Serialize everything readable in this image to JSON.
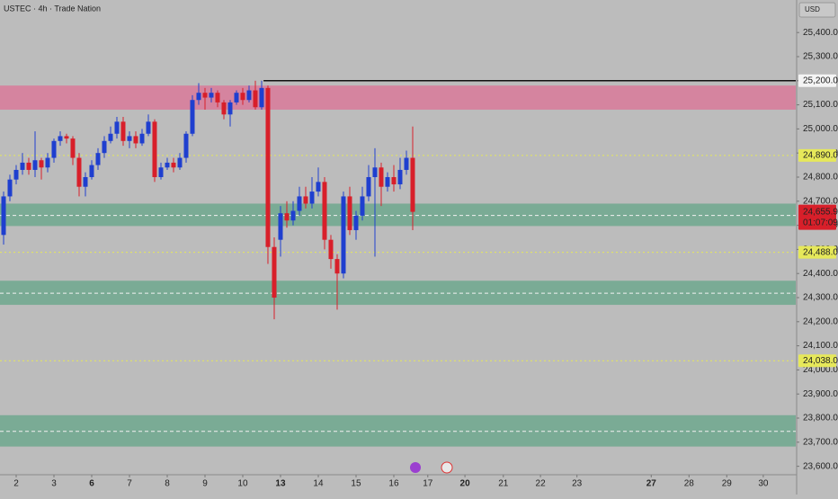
{
  "chart_data": {
    "type": "candlestick",
    "title": "USTEC · 4h · Trade Nation",
    "currency": "USD",
    "up_color": "#1f3fcf",
    "down_color": "#d81f2a",
    "open": [
      24560,
      24720,
      24790,
      24830,
      24860,
      24830,
      24870,
      24840,
      24880,
      24950,
      24970,
      24960,
      24880,
      24760,
      24800,
      24850,
      24900,
      24950,
      24980,
      25030,
      24950,
      24970,
      24940,
      24980,
      25030,
      24800,
      24840,
      24860,
      24840,
      24880,
      24980,
      25120,
      25150,
      25130,
      25150,
      25110,
      25060,
      25110,
      25150,
      25120,
      25160,
      25090,
      25170,
      24510,
      24540,
      24650,
      24620,
      24660,
      24720,
      24690,
      24740,
      24780,
      24540,
      24460,
      24400,
      24720,
      24580,
      24640,
      24720,
      24800,
      24840,
      24760,
      24800,
      24770,
      24830,
      24880
    ],
    "high": [
      24740,
      24810,
      24850,
      24900,
      24880,
      24990,
      24880,
      24900,
      24960,
      24990,
      24980,
      24970,
      24900,
      24820,
      24870,
      24920,
      24970,
      25010,
      25050,
      25050,
      24990,
      24990,
      25000,
      25060,
      25040,
      24860,
      24880,
      24880,
      24900,
      24990,
      25140,
      25190,
      25170,
      25170,
      25160,
      25120,
      25120,
      25160,
      25170,
      25180,
      25200,
      25200,
      25180,
      24550,
      24680,
      24700,
      24700,
      24760,
      24760,
      24800,
      24840,
      24800,
      24560,
      24480,
      24740,
      24760,
      24660,
      24760,
      24850,
      24920,
      24860,
      24820,
      24850,
      24880,
      24910,
      25010
    ],
    "low": [
      24520,
      24700,
      24770,
      24810,
      24810,
      24800,
      24790,
      24820,
      24860,
      24930,
      24940,
      24850,
      24720,
      24720,
      24790,
      24830,
      24880,
      24940,
      24960,
      24930,
      24920,
      24920,
      24930,
      24970,
      24780,
      24790,
      24830,
      24820,
      24830,
      24860,
      24970,
      25100,
      25080,
      25110,
      25090,
      25040,
      25010,
      25100,
      25100,
      25110,
      25080,
      25080,
      24440,
      24210,
      24470,
      24590,
      24600,
      24640,
      24670,
      24670,
      24720,
      24500,
      24420,
      24250,
      24380,
      24560,
      24540,
      24620,
      24700,
      24470,
      24680,
      24740,
      24740,
      24750,
      24810,
      24580
    ],
    "close": [
      24720,
      24790,
      24830,
      24860,
      24830,
      24870,
      24840,
      24880,
      24950,
      24970,
      24960,
      24880,
      24760,
      24800,
      24850,
      24900,
      24950,
      24980,
      25030,
      24950,
      24970,
      24940,
      24980,
      25030,
      24800,
      24840,
      24860,
      24840,
      24880,
      24980,
      25120,
      25150,
      25130,
      25150,
      25110,
      25060,
      25110,
      25150,
      25120,
      25160,
      25090,
      25170,
      24510,
      24300,
      24650,
      24620,
      24660,
      24720,
      24690,
      24740,
      24780,
      24540,
      24460,
      24400,
      24720,
      24580,
      24640,
      24720,
      24800,
      24840,
      24760,
      24800,
      24770,
      24830,
      24880,
      24655.9
    ],
    "xlim": [
      -0.57,
      125.86
    ],
    "xticks": [
      {
        "value": 2,
        "label": "2"
      },
      {
        "value": 8,
        "label": "3"
      },
      {
        "value": 14,
        "label": "6",
        "bold": true
      },
      {
        "value": 20,
        "label": "7"
      },
      {
        "value": 26,
        "label": "8"
      },
      {
        "value": 32,
        "label": "9"
      },
      {
        "value": 38,
        "label": "10"
      },
      {
        "value": 44,
        "label": "13",
        "bold": true
      },
      {
        "value": 50,
        "label": "14"
      },
      {
        "value": 56,
        "label": "15"
      },
      {
        "value": 62,
        "label": "16"
      },
      {
        "value": 67.4,
        "label": "17"
      },
      {
        "value": 73.3,
        "label": "20",
        "bold": true
      },
      {
        "value": 79.4,
        "label": "21"
      },
      {
        "value": 85.3,
        "label": "22"
      },
      {
        "value": 91.1,
        "label": "23"
      },
      {
        "value": 102.9,
        "label": "27",
        "bold": true
      },
      {
        "value": 108.9,
        "label": "28"
      },
      {
        "value": 114.9,
        "label": "29"
      },
      {
        "value": 120.7,
        "label": "30"
      }
    ],
    "ylim": [
      23565,
      25535
    ],
    "yticks": [
      {
        "value": 25400,
        "label": "25,400.0"
      },
      {
        "value": 25300,
        "label": "25,300.0"
      },
      {
        "value": 25200,
        "label": "25,200.0"
      },
      {
        "value": 25100,
        "label": "25,100.0"
      },
      {
        "value": 25000,
        "label": "25,000.0"
      },
      {
        "value": 24900,
        "label": "24,900.0"
      },
      {
        "value": 24800,
        "label": "24,800.0"
      },
      {
        "value": 24700,
        "label": "24,700.0"
      },
      {
        "value": 24600,
        "label": "24,600.0"
      },
      {
        "value": 24500,
        "label": "24,500.0"
      },
      {
        "value": 24400,
        "label": "24,400.0"
      },
      {
        "value": 24300,
        "label": "24,300.0"
      },
      {
        "value": 24200,
        "label": "24,200.0"
      },
      {
        "value": 24100,
        "label": "24,100.0"
      },
      {
        "value": 24000,
        "label": "24,000.0"
      },
      {
        "value": 23900,
        "label": "23,900.0"
      },
      {
        "value": 23800,
        "label": "23,800.0"
      },
      {
        "value": 23700,
        "label": "23,700.0"
      },
      {
        "value": 23600,
        "label": "23,600.0"
      }
    ],
    "zones": [
      {
        "low": 25080,
        "high": 25180,
        "color": "#d97a9a",
        "mid": null
      },
      {
        "low": 24597,
        "high": 24690,
        "color": "#6fa88e",
        "mid": 24641
      },
      {
        "low": 24270,
        "high": 24370,
        "color": "#6fa88e",
        "mid": 24318
      },
      {
        "low": 23682,
        "high": 23812,
        "color": "#6fa88e",
        "mid": 23745
      }
    ],
    "levels": [
      {
        "value": 24890,
        "label": "24,890.0"
      },
      {
        "value": 24488,
        "label": "24,488.0"
      },
      {
        "value": 24038,
        "label": "24,038.0"
      }
    ],
    "level_color": "#e6e85a",
    "resistance": {
      "value": 25200,
      "label": "25,200.0",
      "x_start": 41.3
    },
    "last_price": {
      "value": 24655.9,
      "label": "24,655.9",
      "countdown": "01:07:09"
    }
  }
}
